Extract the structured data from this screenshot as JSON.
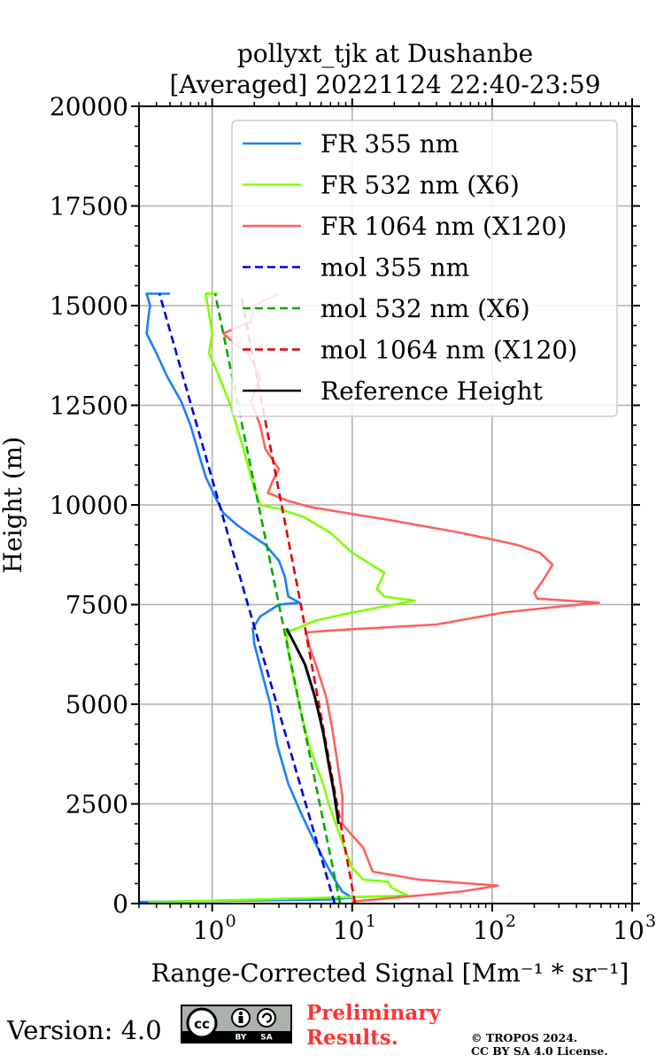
{
  "chart_data": {
    "type": "line",
    "title": [
      "pollyxt_tjk at Dushanbe",
      "[Averaged] 20221124 22:40-23:59"
    ],
    "xlabel": "Range-Corrected Signal [Mm⁻¹ * sr⁻¹]",
    "ylabel": "Height (m)",
    "xscale": "log",
    "xlim": [
      0.3,
      1000
    ],
    "ylim": [
      0,
      20000
    ],
    "x_ticks": [
      1,
      10,
      100,
      1000
    ],
    "y_ticks": [
      0,
      2500,
      5000,
      7500,
      10000,
      12500,
      15000,
      17500,
      20000
    ],
    "y_tick_labels": [
      "0",
      "2500",
      "5000",
      "7500",
      "10000",
      "12500",
      "15000",
      "17500",
      "20000"
    ],
    "grid": true,
    "legend_position": "top-right",
    "series": [
      {
        "name": "FR 355 nm",
        "color": "#1a80ff",
        "style": "solid",
        "points": [
          [
            0.3,
            40
          ],
          [
            7,
            100
          ],
          [
            10,
            150
          ],
          [
            8.5,
            300
          ],
          [
            7.5,
            600
          ],
          [
            6.5,
            1000
          ],
          [
            5.3,
            1600
          ],
          [
            4.4,
            2200
          ],
          [
            3.5,
            3000
          ],
          [
            2.9,
            4000
          ],
          [
            2.6,
            5000
          ],
          [
            2.3,
            5700
          ],
          [
            2.0,
            6500
          ],
          [
            1.95,
            6900
          ],
          [
            2.2,
            7200
          ],
          [
            3.0,
            7500
          ],
          [
            4.2,
            7550
          ],
          [
            3.5,
            7700
          ],
          [
            3.3,
            8200
          ],
          [
            3.0,
            8600
          ],
          [
            2.4,
            9000
          ],
          [
            1.8,
            9300
          ],
          [
            1.5,
            9500
          ],
          [
            1.2,
            9800
          ],
          [
            1.05,
            10200
          ],
          [
            0.9,
            10700
          ],
          [
            0.8,
            11300
          ],
          [
            0.7,
            12000
          ],
          [
            0.6,
            12600
          ],
          [
            0.48,
            13200
          ],
          [
            0.4,
            13800
          ],
          [
            0.34,
            14300
          ],
          [
            0.35,
            14700
          ],
          [
            0.36,
            15000
          ],
          [
            0.34,
            15300
          ],
          [
            0.5,
            15300
          ]
        ]
      },
      {
        "name": "FR 532 nm (X6)",
        "color": "#7fff00",
        "style": "solid",
        "points": [
          [
            0.35,
            30
          ],
          [
            25,
            200
          ],
          [
            19,
            400
          ],
          [
            18,
            550
          ],
          [
            12,
            600
          ],
          [
            10,
            900
          ],
          [
            9,
            1300
          ],
          [
            8,
            1800
          ],
          [
            6.8,
            2500
          ],
          [
            6.2,
            3000
          ],
          [
            5.5,
            3500
          ],
          [
            4.9,
            4000
          ],
          [
            4.3,
            4800
          ],
          [
            3.9,
            5500
          ],
          [
            3.5,
            6300
          ],
          [
            3.4,
            6800
          ],
          [
            5.5,
            7100
          ],
          [
            10,
            7300
          ],
          [
            20,
            7500
          ],
          [
            28,
            7600
          ],
          [
            17,
            7700
          ],
          [
            15,
            7900
          ],
          [
            16,
            8100
          ],
          [
            17,
            8300
          ],
          [
            10,
            8800
          ],
          [
            7,
            9300
          ],
          [
            4.5,
            9700
          ],
          [
            3.0,
            9900
          ],
          [
            2.2,
            10000
          ],
          [
            2.0,
            10400
          ],
          [
            1.8,
            11000
          ],
          [
            1.55,
            11800
          ],
          [
            1.35,
            12500
          ],
          [
            1.1,
            13300
          ],
          [
            0.95,
            13800
          ],
          [
            1.0,
            14300
          ],
          [
            0.95,
            14800
          ],
          [
            0.9,
            15300
          ],
          [
            1.1,
            15300
          ]
        ]
      },
      {
        "name": "FR 1064 nm (X120)",
        "color": "#ff6060",
        "style": "solid",
        "points": [
          [
            10,
            50
          ],
          [
            60,
            300
          ],
          [
            110,
            450
          ],
          [
            30,
            600
          ],
          [
            14,
            800
          ],
          [
            12,
            1400
          ],
          [
            9.5,
            1800
          ],
          [
            8.5,
            2000
          ],
          [
            8.5,
            2700
          ],
          [
            7.8,
            3600
          ],
          [
            7.2,
            4400
          ],
          [
            6.5,
            5200
          ],
          [
            5.5,
            6000
          ],
          [
            5.0,
            6400
          ],
          [
            4.7,
            6800
          ],
          [
            7,
            6850
          ],
          [
            40,
            7000
          ],
          [
            120,
            7300
          ],
          [
            300,
            7450
          ],
          [
            580,
            7550
          ],
          [
            210,
            7650
          ],
          [
            200,
            7800
          ],
          [
            230,
            8100
          ],
          [
            270,
            8500
          ],
          [
            220,
            8800
          ],
          [
            150,
            9000
          ],
          [
            60,
            9300
          ],
          [
            20,
            9600
          ],
          [
            9,
            9800
          ],
          [
            5,
            9950
          ],
          [
            3.5,
            10100
          ],
          [
            2.5,
            10300
          ],
          [
            2.7,
            10600
          ],
          [
            3.0,
            10900
          ],
          [
            2.4,
            11400
          ],
          [
            2.2,
            12000
          ],
          [
            1.9,
            12600
          ],
          [
            2.2,
            13200
          ],
          [
            1.8,
            13800
          ],
          [
            1.5,
            14000
          ],
          [
            1.2,
            14300
          ],
          [
            1.9,
            14600
          ],
          [
            2.0,
            15000
          ],
          [
            3.0,
            15300
          ]
        ]
      },
      {
        "name": "mol 355 nm",
        "color": "#0000dd",
        "style": "dashed",
        "points": [
          [
            7.5,
            0
          ],
          [
            1.8,
            7500
          ],
          [
            0.42,
            15300
          ]
        ]
      },
      {
        "name": "mol 532 nm (X6)",
        "color": "#00aa00",
        "style": "dashed",
        "points": [
          [
            8.2,
            0
          ],
          [
            3.0,
            7500
          ],
          [
            1.05,
            15300
          ]
        ]
      },
      {
        "name": "mol 1064 nm (X120)",
        "color": "#dd0000",
        "style": "dashed",
        "points": [
          [
            10.5,
            0
          ],
          [
            4.3,
            7500
          ],
          [
            1.6,
            15300
          ]
        ]
      },
      {
        "name": "Reference Height",
        "color": "#000000",
        "style": "solid",
        "points": [
          [
            8.0,
            2000
          ],
          [
            7.4,
            2800
          ],
          [
            6.8,
            3500
          ],
          [
            6.2,
            4300
          ],
          [
            5.4,
            5200
          ],
          [
            4.6,
            6000
          ],
          [
            3.9,
            6500
          ],
          [
            3.4,
            6900
          ]
        ]
      }
    ]
  },
  "footer": {
    "version_text": "Version: 4.0",
    "license_badge": {
      "cc": "cc",
      "by": "BY",
      "sa": "SA"
    },
    "preliminary_line1": "Preliminary",
    "preliminary_line2": "Results.",
    "copyright_line1": "© TROPOS 2024.",
    "copyright_line2": "CC BY SA 4.0 License."
  }
}
